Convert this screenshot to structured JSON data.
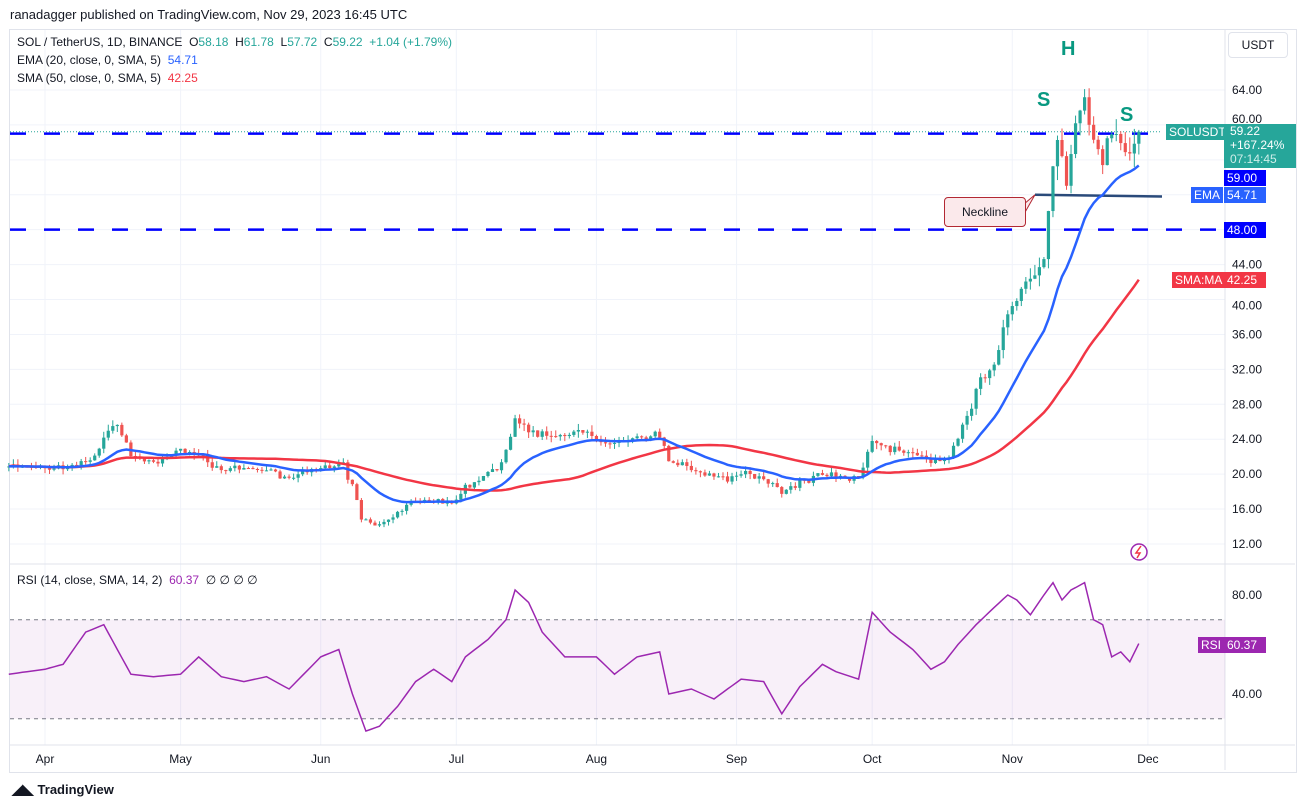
{
  "publisher": "ranadagger published on TradingView.com, Nov 29, 2023 16:45 UTC",
  "legend": {
    "symbol": "SOL / TetherUS, 1D, BINANCE",
    "o_label": "O",
    "o": "58.18",
    "h_label": "H",
    "h": "61.78",
    "l_label": "L",
    "l": "57.72",
    "c_label": "C",
    "c": "59.22",
    "change": "+1.04 (+1.79%)",
    "ema": "EMA (20, close, 0, SMA, 5)",
    "ema_val": "54.71",
    "sma": "SMA (50, close, 0, SMA, 5)",
    "sma_val": "42.25",
    "rsi": "RSI (14, close, SMA, 14, 2)",
    "rsi_val": "60.37",
    "rsi_extra": "∅ ∅ ∅ ∅"
  },
  "price_scale": {
    "currency": "USDT",
    "ticks": [
      "64.00",
      "60.00",
      "44.00",
      "40.00",
      "36.00",
      "32.00",
      "28.00",
      "24.00",
      "20.00",
      "16.00",
      "12.00"
    ]
  },
  "rsi_scale": {
    "ticks": [
      "80.00",
      "40.00"
    ]
  },
  "tags": {
    "symbol": "SOLUSDT",
    "price": "59.22",
    "pct": "+167.24%",
    "countdown": "07:14:45",
    "level1": "59.00",
    "ema_label": "EMA",
    "ema": "54.71",
    "level2": "48.00",
    "sma_label": "SMA:MA",
    "sma": "42.25",
    "rsi_label": "RSI",
    "rsi": "60.37"
  },
  "annotations": {
    "head": "H",
    "shoulder_left": "S",
    "shoulder_right": "S",
    "neckline": "Neckline"
  },
  "time_axis": [
    "Apr",
    "May",
    "Jun",
    "Jul",
    "Aug",
    "Sep",
    "Oct",
    "Nov",
    "Dec"
  ],
  "footer": "TradingView",
  "colors": {
    "up": "#26a69a",
    "down": "#ef5350",
    "ema": "#2962ff",
    "sma": "#f23645",
    "rsi": "#9c27b0",
    "level": "#0000ff"
  },
  "chart_data": {
    "type": "candlestick",
    "title": "SOL / TetherUS, 1D, BINANCE",
    "ylim": [
      10,
      70
    ],
    "rsi_ylim": [
      15,
      100
    ],
    "horizontal_levels": [
      59,
      48
    ],
    "neckline": 52,
    "rsi_bands": [
      70,
      30
    ],
    "close_keypoints": [
      [
        "2023-03-24",
        21
      ],
      [
        "2023-04-01",
        20.5
      ],
      [
        "2023-04-08",
        21
      ],
      [
        "2023-04-12",
        22
      ],
      [
        "2023-04-14",
        24
      ],
      [
        "2023-04-17",
        25.5
      ],
      [
        "2023-04-20",
        22
      ],
      [
        "2023-04-25",
        21.5
      ],
      [
        "2023-04-28",
        22
      ],
      [
        "2023-05-01",
        23
      ],
      [
        "2023-05-05",
        22
      ],
      [
        "2023-05-10",
        20.5
      ],
      [
        "2023-05-15",
        20.8
      ],
      [
        "2023-05-20",
        20.5
      ],
      [
        "2023-05-25",
        19.5
      ],
      [
        "2023-05-30",
        20.5
      ],
      [
        "2023-06-03",
        20.8
      ],
      [
        "2023-06-06",
        21
      ],
      [
        "2023-06-08",
        18.5
      ],
      [
        "2023-06-10",
        15
      ],
      [
        "2023-06-13",
        14
      ],
      [
        "2023-06-17",
        15
      ],
      [
        "2023-06-20",
        16.5
      ],
      [
        "2023-06-25",
        17
      ],
      [
        "2023-06-30",
        16.5
      ],
      [
        "2023-07-03",
        18.5
      ],
      [
        "2023-07-08",
        20
      ],
      [
        "2023-07-11",
        21
      ],
      [
        "2023-07-14",
        26.5
      ],
      [
        "2023-07-17",
        25
      ],
      [
        "2023-07-20",
        24.5
      ],
      [
        "2023-07-25",
        24.5
      ],
      [
        "2023-07-28",
        25
      ],
      [
        "2023-08-01",
        24
      ],
      [
        "2023-08-05",
        23.5
      ],
      [
        "2023-08-10",
        24
      ],
      [
        "2023-08-15",
        24.5
      ],
      [
        "2023-08-17",
        21.5
      ],
      [
        "2023-08-20",
        21
      ],
      [
        "2023-08-25",
        20
      ],
      [
        "2023-08-30",
        19.5
      ],
      [
        "2023-09-03",
        20
      ],
      [
        "2023-09-08",
        19
      ],
      [
        "2023-09-11",
        17.8
      ],
      [
        "2023-09-15",
        19
      ],
      [
        "2023-09-20",
        20
      ],
      [
        "2023-09-25",
        19.5
      ],
      [
        "2023-09-28",
        19.5
      ],
      [
        "2023-10-01",
        23.5
      ],
      [
        "2023-10-05",
        23
      ],
      [
        "2023-10-10",
        22.5
      ],
      [
        "2023-10-15",
        21.5
      ],
      [
        "2023-10-18",
        22
      ],
      [
        "2023-10-20",
        24
      ],
      [
        "2023-10-23",
        28
      ],
      [
        "2023-10-25",
        31
      ],
      [
        "2023-10-28",
        32.5
      ],
      [
        "2023-10-31",
        38
      ],
      [
        "2023-11-02",
        40
      ],
      [
        "2023-11-04",
        42
      ],
      [
        "2023-11-06",
        42.5
      ],
      [
        "2023-11-08",
        45
      ],
      [
        "2023-11-10",
        56
      ],
      [
        "2023-11-11",
        58
      ],
      [
        "2023-11-13",
        54
      ],
      [
        "2023-11-14",
        57
      ],
      [
        "2023-11-15",
        60
      ],
      [
        "2023-11-17",
        63
      ],
      [
        "2023-11-19",
        58
      ],
      [
        "2023-11-20",
        56.5
      ],
      [
        "2023-11-21",
        54.5
      ],
      [
        "2023-11-22",
        58
      ],
      [
        "2023-11-24",
        59
      ],
      [
        "2023-11-26",
        57
      ],
      [
        "2023-11-27",
        56
      ],
      [
        "2023-11-28",
        58.18
      ],
      [
        "2023-11-29",
        59.22
      ]
    ],
    "rsi_keypoints": [
      [
        "2023-03-24",
        48
      ],
      [
        "2023-04-01",
        50
      ],
      [
        "2023-04-05",
        52
      ],
      [
        "2023-04-10",
        65
      ],
      [
        "2023-04-14",
        68
      ],
      [
        "2023-04-17",
        58
      ],
      [
        "2023-04-20",
        48
      ],
      [
        "2023-04-25",
        47
      ],
      [
        "2023-05-01",
        48
      ],
      [
        "2023-05-05",
        55
      ],
      [
        "2023-05-10",
        47
      ],
      [
        "2023-05-15",
        45
      ],
      [
        "2023-05-20",
        47
      ],
      [
        "2023-05-25",
        42
      ],
      [
        "2023-06-01",
        55
      ],
      [
        "2023-06-05",
        58
      ],
      [
        "2023-06-08",
        40
      ],
      [
        "2023-06-11",
        25
      ],
      [
        "2023-06-14",
        27
      ],
      [
        "2023-06-18",
        35
      ],
      [
        "2023-06-22",
        45
      ],
      [
        "2023-06-26",
        50
      ],
      [
        "2023-06-30",
        45
      ],
      [
        "2023-07-03",
        55
      ],
      [
        "2023-07-08",
        62
      ],
      [
        "2023-07-12",
        70
      ],
      [
        "2023-07-14",
        82
      ],
      [
        "2023-07-17",
        77
      ],
      [
        "2023-07-20",
        65
      ],
      [
        "2023-07-25",
        55
      ],
      [
        "2023-08-01",
        55
      ],
      [
        "2023-08-05",
        48
      ],
      [
        "2023-08-10",
        55
      ],
      [
        "2023-08-15",
        57
      ],
      [
        "2023-08-17",
        40
      ],
      [
        "2023-08-22",
        42
      ],
      [
        "2023-08-27",
        38
      ],
      [
        "2023-09-02",
        46
      ],
      [
        "2023-09-07",
        45
      ],
      [
        "2023-09-11",
        32
      ],
      [
        "2023-09-15",
        43
      ],
      [
        "2023-09-20",
        52
      ],
      [
        "2023-09-23",
        49
      ],
      [
        "2023-09-28",
        46
      ],
      [
        "2023-10-01",
        73
      ],
      [
        "2023-10-05",
        65
      ],
      [
        "2023-10-10",
        58
      ],
      [
        "2023-10-14",
        50
      ],
      [
        "2023-10-17",
        53
      ],
      [
        "2023-10-20",
        60
      ],
      [
        "2023-10-24",
        68
      ],
      [
        "2023-10-28",
        75
      ],
      [
        "2023-10-31",
        80
      ],
      [
        "2023-11-02",
        78
      ],
      [
        "2023-11-05",
        72
      ],
      [
        "2023-11-08",
        80
      ],
      [
        "2023-11-10",
        85
      ],
      [
        "2023-11-12",
        78
      ],
      [
        "2023-11-14",
        82
      ],
      [
        "2023-11-17",
        85
      ],
      [
        "2023-11-19",
        70
      ],
      [
        "2023-11-21",
        68
      ],
      [
        "2023-11-23",
        55
      ],
      [
        "2023-11-25",
        57
      ],
      [
        "2023-11-27",
        53
      ],
      [
        "2023-11-29",
        60.37
      ]
    ]
  }
}
